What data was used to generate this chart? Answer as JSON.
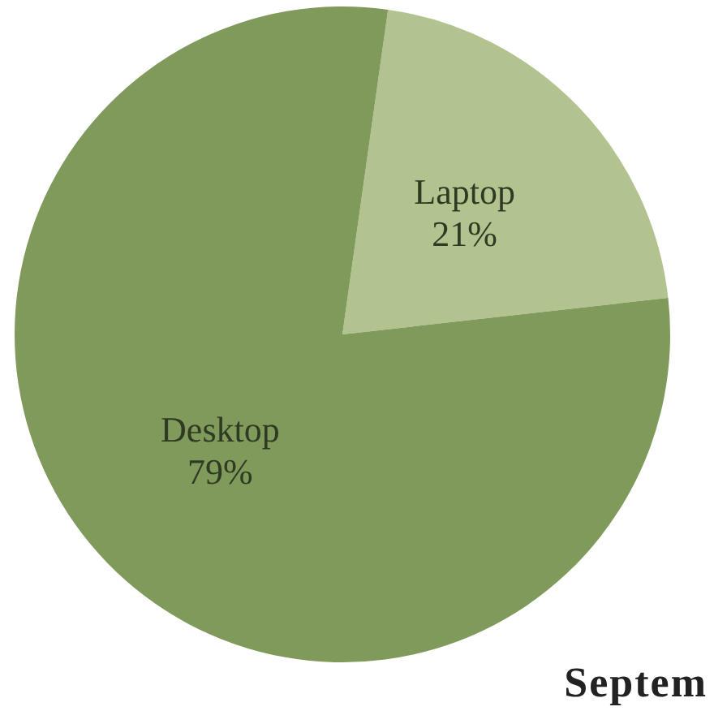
{
  "chart_data": {
    "type": "pie",
    "categories": [
      "Laptop",
      "Desktop"
    ],
    "values": [
      21,
      79
    ],
    "colors": [
      "#b3c38f",
      "#7f9a5a"
    ],
    "value_labels": [
      "21%",
      "79%"
    ],
    "annotations": [
      "Septem"
    ]
  }
}
